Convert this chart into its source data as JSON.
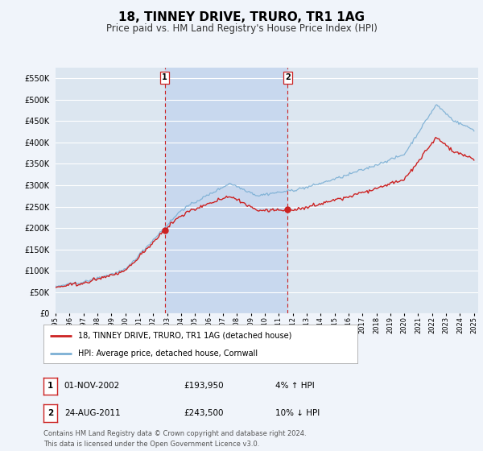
{
  "title": "18, TINNEY DRIVE, TRURO, TR1 1AG",
  "subtitle": "Price paid vs. HM Land Registry's House Price Index (HPI)",
  "title_fontsize": 11,
  "subtitle_fontsize": 8.5,
  "bg_color": "#f0f4fa",
  "plot_bg_color": "#dce6f0",
  "shade_color": "#c8d8ee",
  "grid_color": "#ffffff",
  "ylim": [
    0,
    575000
  ],
  "yticks": [
    0,
    50000,
    100000,
    150000,
    200000,
    250000,
    300000,
    350000,
    400000,
    450000,
    500000,
    550000
  ],
  "year_start": 1995,
  "year_end": 2025,
  "sale1_year": 2002.83,
  "sale1_price": 193950,
  "sale1_label": "1",
  "sale1_date": "01-NOV-2002",
  "sale1_pct": "4% ↑ HPI",
  "sale2_year": 2011.64,
  "sale2_price": 243500,
  "sale2_label": "2",
  "sale2_date": "24-AUG-2011",
  "sale2_pct": "10% ↓ HPI",
  "legend_label1": "18, TINNEY DRIVE, TRURO, TR1 1AG (detached house)",
  "legend_label2": "HPI: Average price, detached house, Cornwall",
  "footer": "Contains HM Land Registry data © Crown copyright and database right 2024.\nThis data is licensed under the Open Government Licence v3.0.",
  "hpi_color": "#7bafd4",
  "sale_color": "#cc2222",
  "vline_color": "#cc2222"
}
